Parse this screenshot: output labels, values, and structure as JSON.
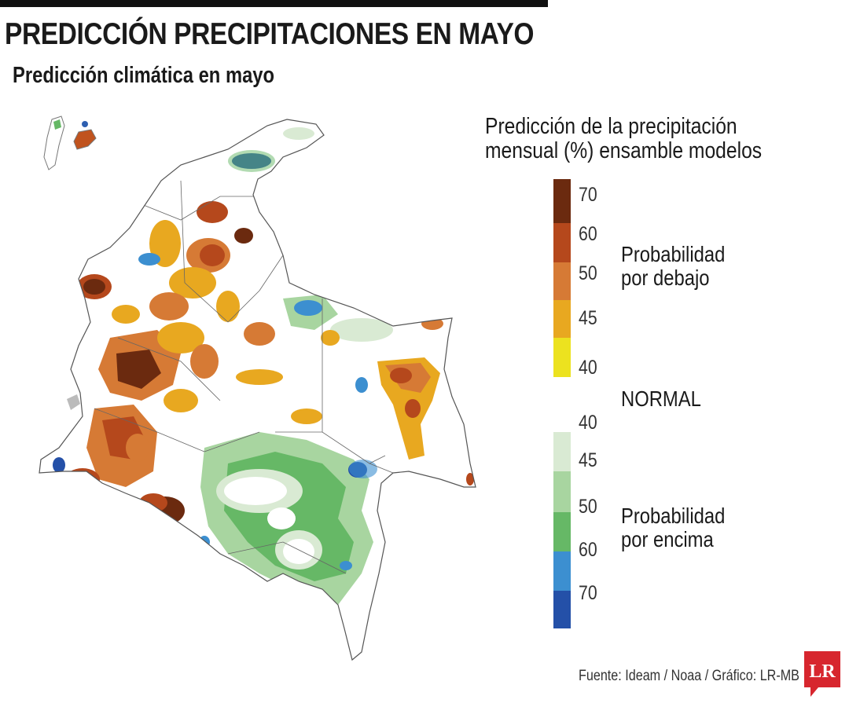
{
  "title": "PREDICCIÓN PRECIPITACIONES EN MAYO",
  "subtitle": "Predicción climática en mayo",
  "legend": {
    "title_line1": "Predicción de la precipitación",
    "title_line2": "mensual (%) ensamble modelos",
    "below_label_line1": "Probabilidad",
    "below_label_line2": "por debajo",
    "normal_label": "NORMAL",
    "above_label_line1": "Probabilidad",
    "above_label_line2": "por encima",
    "ticks": [
      "70",
      "60",
      "50",
      "45",
      "40",
      "40",
      "45",
      "50",
      "60",
      "70"
    ],
    "colors": {
      "below_70": "#6b2a0f",
      "below_60": "#b5481c",
      "below_50": "#d67a35",
      "below_45": "#e8a820",
      "below_40": "#ece21f",
      "normal": "#ffffff",
      "above_45": "#d9ead3",
      "above_50": "#a8d5a0",
      "above_60": "#66b866",
      "above_70_light": "#3c8fd0",
      "above_70_dark": "#2450a8"
    }
  },
  "source": "Fuente: Ideam / Noaa / Gráfico: LR-MB",
  "logo_text": "LR"
}
